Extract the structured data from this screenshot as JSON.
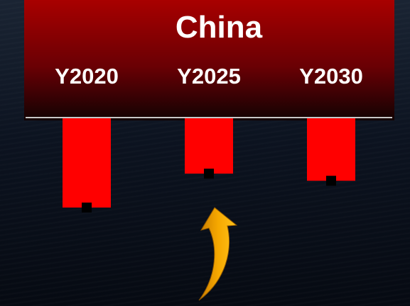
{
  "chart_data": {
    "type": "bar",
    "title": "China",
    "categories": [
      "Y2020",
      "Y2025",
      "Y2030"
    ],
    "series": [
      {
        "values": [
          -100,
          -62,
          -70
        ]
      }
    ],
    "ylim": [
      -100,
      0
    ],
    "orientation": "downward-from-baseline",
    "grid": false,
    "legend": "none",
    "colors": {
      "bar": "#ff0000",
      "marker": "#000000",
      "header_top": "#a80000",
      "header_bottom": "#120203",
      "baseline": "#c8c8c8",
      "arrow": "#f6a800",
      "text": "#ffffff"
    },
    "annotation": {
      "arrow": "up-pointing curved arrow below Y2025",
      "icon": "curved-arrow-up-icon"
    }
  }
}
